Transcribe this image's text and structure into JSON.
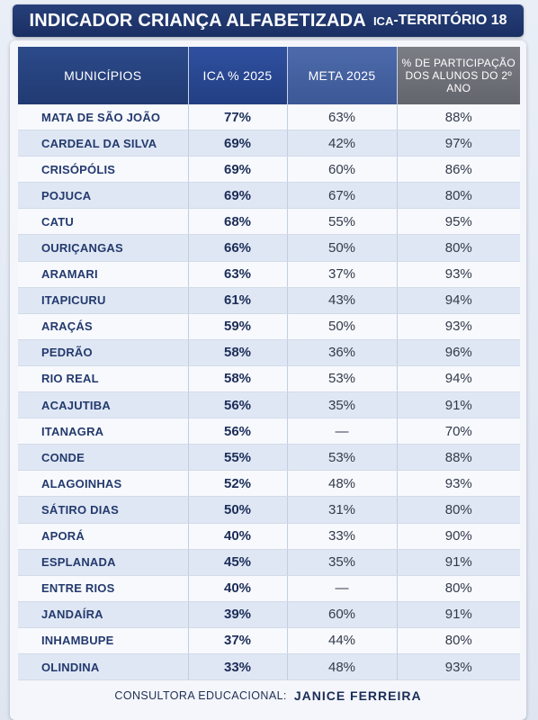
{
  "header": {
    "title": "INDICADOR CRIANÇA ALFABETIZADA",
    "subtitle_small": "ICA",
    "subtitle": "-TERRITÓRIO 18"
  },
  "table": {
    "columns": [
      "MUNICÍPIOS",
      "ICA % 2025",
      "META 2025",
      "% DE PARTICIPAÇÃO DOS ALUNOS DO 2º ANO"
    ],
    "rows": [
      {
        "municipio": "MATA DE SÃO JOÃO",
        "ica": "77%",
        "meta": "63%",
        "participacao": "88%"
      },
      {
        "municipio": "CARDEAL DA SILVA",
        "ica": "69%",
        "meta": "42%",
        "participacao": "97%"
      },
      {
        "municipio": "CRISÓPÓLIS",
        "ica": "69%",
        "meta": "60%",
        "participacao": "86%"
      },
      {
        "municipio": "POJUCA",
        "ica": "69%",
        "meta": "67%",
        "participacao": "80%"
      },
      {
        "municipio": "CATU",
        "ica": "68%",
        "meta": "55%",
        "participacao": "95%"
      },
      {
        "municipio": "OURIÇANGAS",
        "ica": "66%",
        "meta": "50%",
        "participacao": "80%"
      },
      {
        "municipio": "ARAMARI",
        "ica": "63%",
        "meta": "37%",
        "participacao": "93%"
      },
      {
        "municipio": "ITAPICURU",
        "ica": "61%",
        "meta": "43%",
        "participacao": "94%"
      },
      {
        "municipio": "ARAÇÁS",
        "ica": "59%",
        "meta": "50%",
        "participacao": "93%"
      },
      {
        "municipio": "PEDRÃO",
        "ica": "58%",
        "meta": "36%",
        "participacao": "96%"
      },
      {
        "municipio": "RIO REAL",
        "ica": "58%",
        "meta": "53%",
        "participacao": "94%"
      },
      {
        "municipio": "ACAJUTIBA",
        "ica": "56%",
        "meta": "35%",
        "participacao": "91%"
      },
      {
        "municipio": "ITANAGRA",
        "ica": "56%",
        "meta": "—",
        "participacao": "70%"
      },
      {
        "municipio": "CONDE",
        "ica": "55%",
        "meta": "53%",
        "participacao": "88%"
      },
      {
        "municipio": "ALAGOINHAS",
        "ica": "52%",
        "meta": "48%",
        "participacao": "93%"
      },
      {
        "municipio": "SÁTIRO DIAS",
        "ica": "50%",
        "meta": "31%",
        "participacao": "80%"
      },
      {
        "municipio": "APORÁ",
        "ica": "40%",
        "meta": "33%",
        "participacao": "90%"
      },
      {
        "municipio": "ESPLANADA",
        "ica": "45%",
        "meta": "35%",
        "participacao": "91%"
      },
      {
        "municipio": "ENTRE RIOS",
        "ica": "40%",
        "meta": "—",
        "participacao": "80%"
      },
      {
        "municipio": "JANDAÍRA",
        "ica": "39%",
        "meta": "60%",
        "participacao": "91%"
      },
      {
        "municipio": "INHAMBUPE",
        "ica": "37%",
        "meta": "44%",
        "participacao": "80%"
      },
      {
        "municipio": "OLINDINA",
        "ica": "33%",
        "meta": "48%",
        "participacao": "93%"
      }
    ]
  },
  "footer": {
    "label": "CONSULTORA EDUCACIONAL:",
    "name": "JANICE  FERREIRA"
  },
  "colors": {
    "title_bg": "#1a2f63",
    "header_municipios": "#213a72",
    "header_ica": "#233f83",
    "header_meta": "#3c5895",
    "header_participacao": "#63656d",
    "row_alt": "#dfe7f4"
  }
}
